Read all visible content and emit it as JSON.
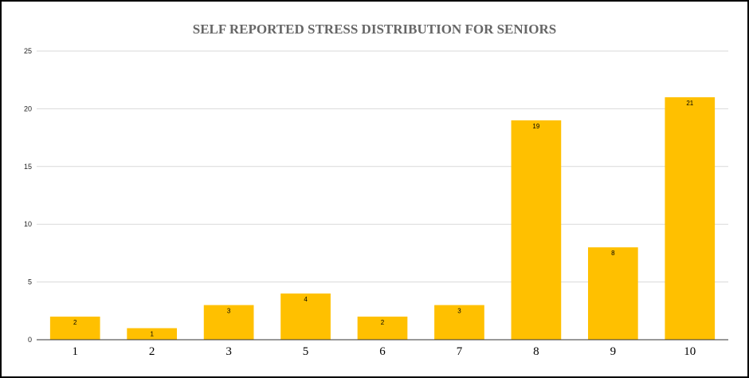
{
  "chart_data": {
    "type": "bar",
    "title": "SELF REPORTED STRESS DISTRIBUTION FOR SENIORS",
    "categories": [
      "1",
      "2",
      "3",
      "5",
      "6",
      "7",
      "8",
      "9",
      "10"
    ],
    "values": [
      2,
      1,
      3,
      4,
      2,
      3,
      19,
      8,
      21
    ],
    "data_labels": [
      "2",
      "1",
      "3",
      "4",
      "2",
      "3",
      "19",
      "8",
      "21"
    ],
    "ylim": [
      0,
      25
    ],
    "yticks": [
      "0",
      "5",
      "10",
      "15",
      "20",
      "25"
    ],
    "grid": true,
    "legend": "none",
    "bar_color": "#FFC000"
  }
}
